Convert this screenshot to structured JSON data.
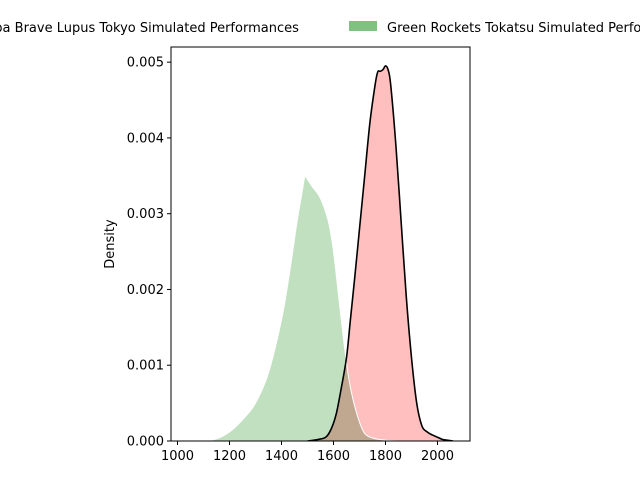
{
  "chart_data": {
    "type": "area",
    "subtype": "kde-density",
    "title": "",
    "xlabel": "",
    "ylabel": "Density",
    "xlim": [
      975,
      2125
    ],
    "ylim": [
      0,
      0.0052
    ],
    "xticks": [
      1000,
      1200,
      1400,
      1600,
      1800,
      2000
    ],
    "yticks": [
      0.0,
      0.001,
      0.002,
      0.003,
      0.004,
      0.005
    ],
    "ytick_labels": [
      "0.000",
      "0.001",
      "0.002",
      "0.003",
      "0.004",
      "0.005"
    ],
    "grid": false,
    "legend_position": "top, spanning beyond plot",
    "series": [
      {
        "name": "Toshiba Brave Lupus Tokyo Simulated Performances",
        "fill": "#ffbfbf",
        "stroke": "#000000",
        "x": [
          1500,
          1540,
          1570,
          1590,
          1610,
          1630,
          1650,
          1665,
          1680,
          1700,
          1720,
          1740,
          1760,
          1770,
          1780,
          1790,
          1800,
          1810,
          1820,
          1840,
          1860,
          1880,
          1900,
          1920,
          1940,
          1960,
          1980,
          2000,
          2020,
          2040,
          2060
        ],
        "y": [
          0,
          2e-05,
          5e-05,
          0.00015,
          0.00035,
          0.0007,
          0.0011,
          0.0016,
          0.0021,
          0.0028,
          0.0035,
          0.0042,
          0.0047,
          0.00487,
          0.00488,
          0.0049,
          0.00495,
          0.0049,
          0.0047,
          0.0039,
          0.0029,
          0.0019,
          0.0011,
          0.0005,
          0.0002,
          0.00012,
          8e-05,
          5e-05,
          2e-05,
          1e-05,
          0
        ]
      },
      {
        "name": "Green Rockets Tokatsu Simulated Performances",
        "fill": "#c0e0c0",
        "stroke": "#ffffff",
        "legend_color": "#80c080",
        "x": [
          1100,
          1150,
          1200,
          1250,
          1300,
          1350,
          1400,
          1430,
          1460,
          1480,
          1490,
          1500,
          1520,
          1550,
          1580,
          1600,
          1620,
          1640,
          1660,
          1680,
          1700,
          1720,
          1750,
          1800,
          1850,
          1900,
          1950
        ],
        "y": [
          0,
          3e-05,
          0.00012,
          0.00028,
          0.0005,
          0.0009,
          0.0016,
          0.0022,
          0.0029,
          0.0033,
          0.00349,
          0.00345,
          0.00335,
          0.0032,
          0.0029,
          0.0025,
          0.0019,
          0.0013,
          0.0008,
          0.00048,
          0.00025,
          0.0001,
          4e-05,
          1e-05,
          0,
          0,
          0
        ]
      }
    ],
    "overlap_color": "#d0a890"
  }
}
